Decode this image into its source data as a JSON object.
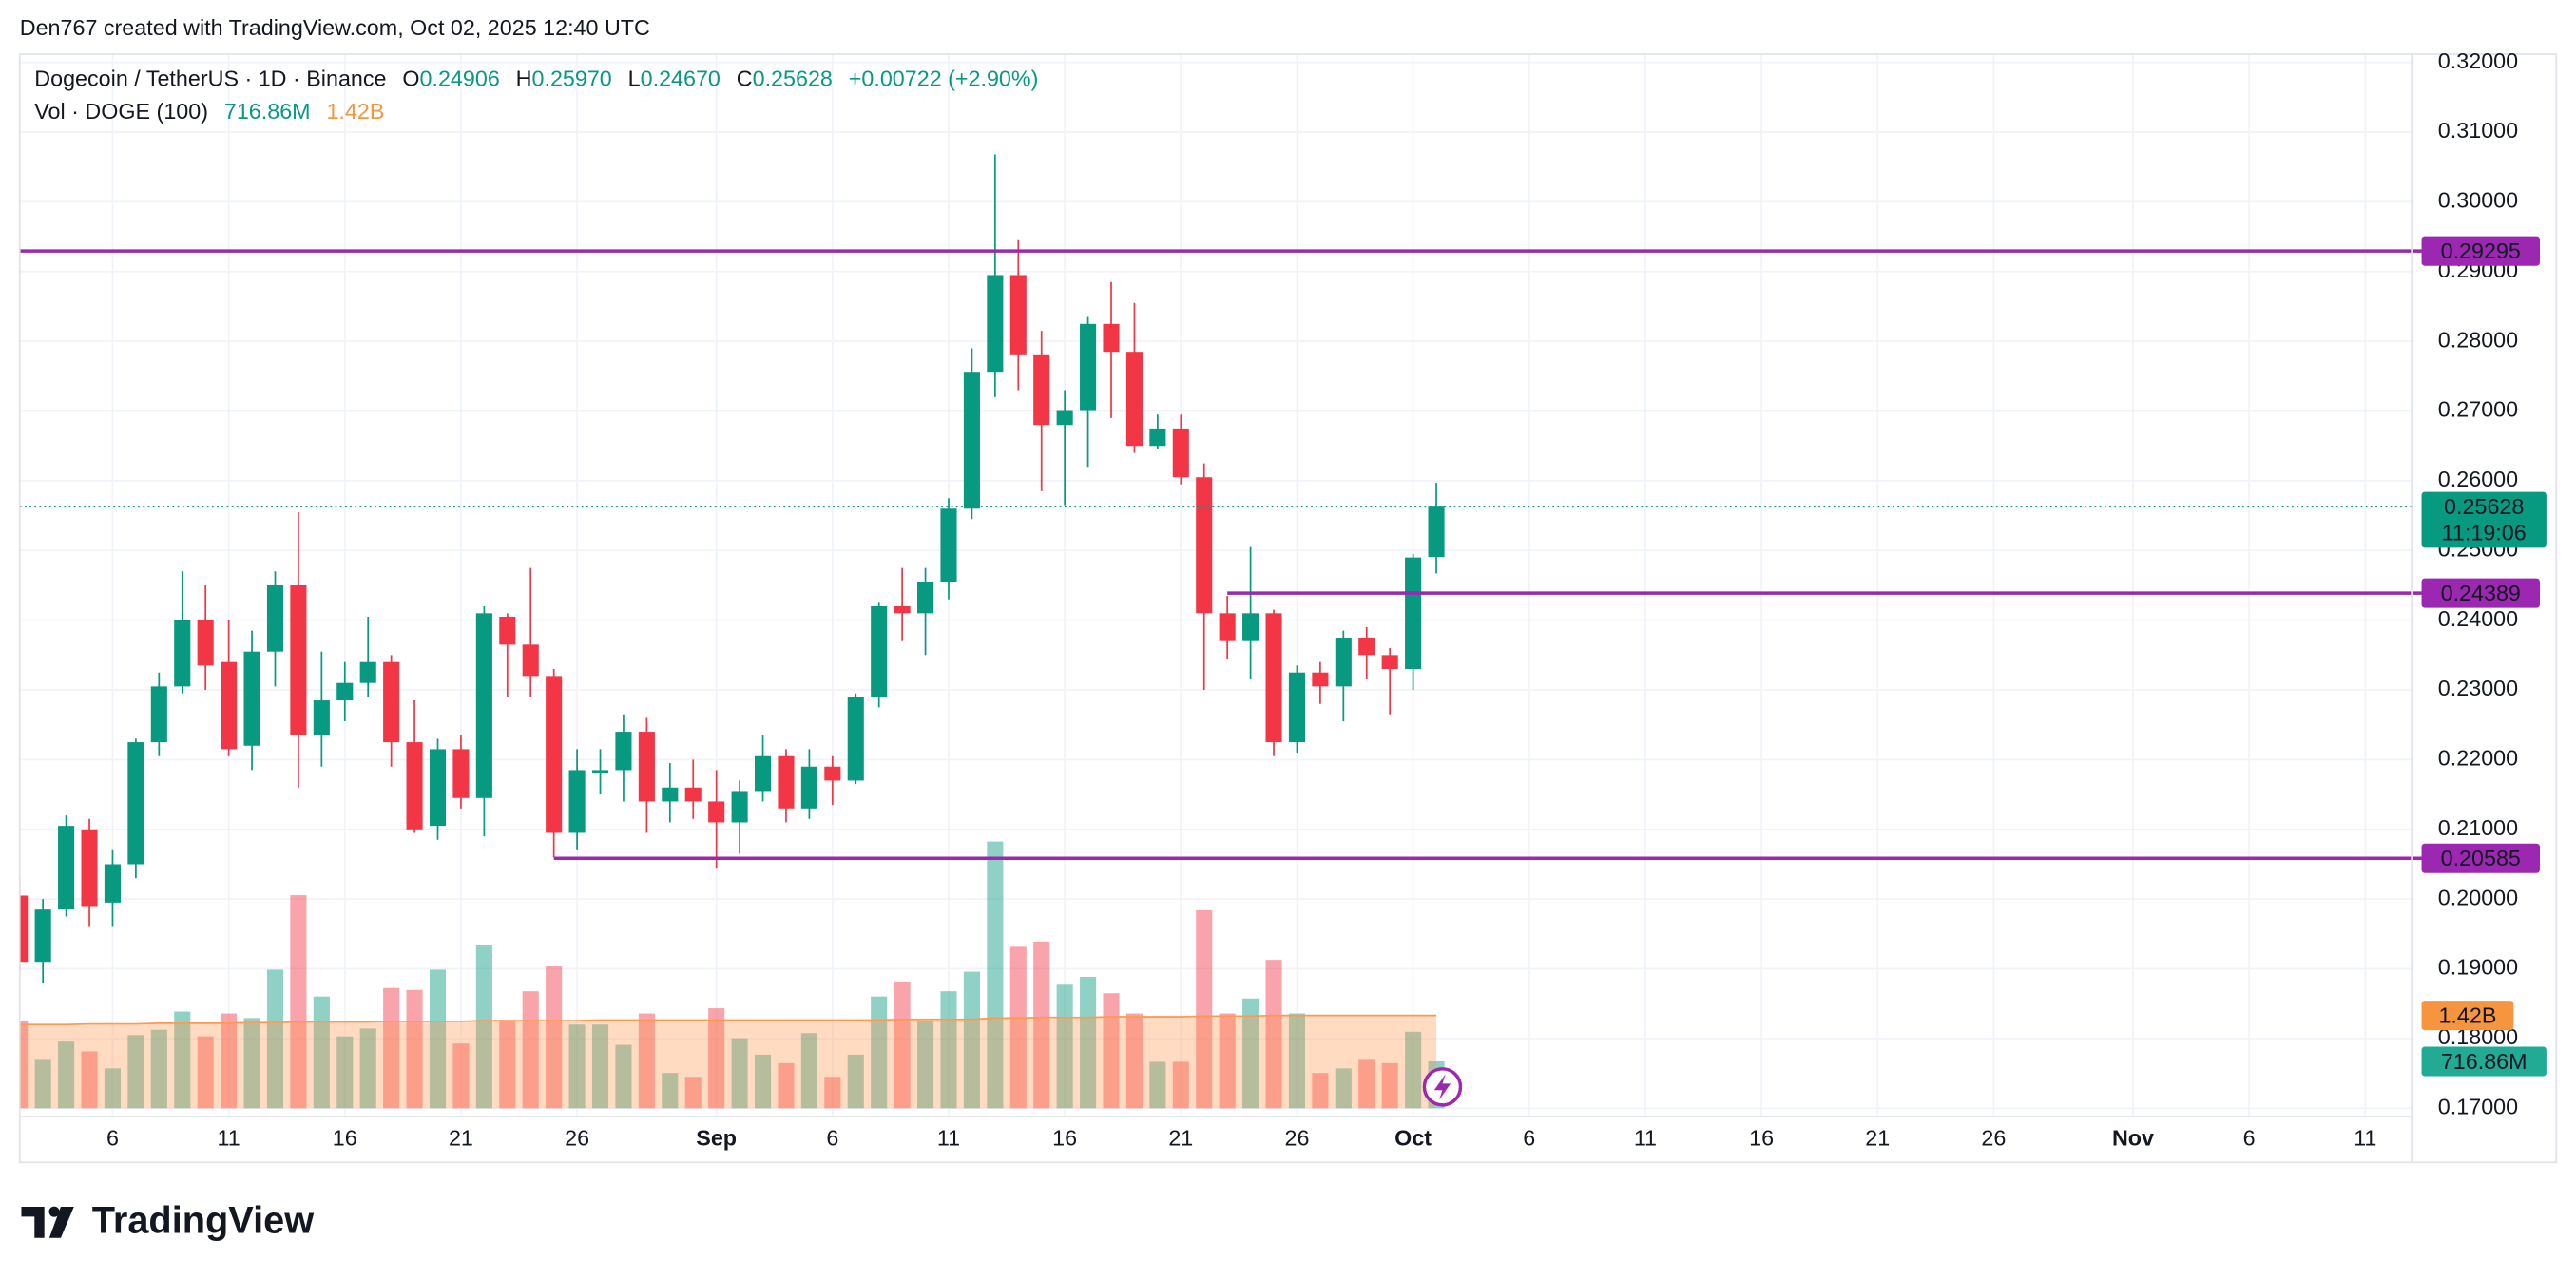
{
  "chart_data": {
    "type": "candlestick",
    "watermark": "Den767 created with TradingView.com, Oct 02, 2025 12:40 UTC",
    "symbol": "Dogecoin / TetherUS · 1D · Binance",
    "header": {
      "open_label": "O",
      "open": "0.24906",
      "high_label": "H",
      "high": "0.25970",
      "low_label": "L",
      "low": "0.24670",
      "close_label": "C",
      "close": "0.25628",
      "change": "+0.00722 (+2.90%)"
    },
    "volume_legend": {
      "name": "Vol · DOGE (100)",
      "value": "716.86M",
      "ma": "1.42B"
    },
    "x": [
      "2025-08-02",
      "2025-08-03",
      "2025-08-04",
      "2025-08-05",
      "2025-08-06",
      "2025-08-07",
      "2025-08-08",
      "2025-08-09",
      "2025-08-10",
      "2025-08-11",
      "2025-08-12",
      "2025-08-13",
      "2025-08-14",
      "2025-08-15",
      "2025-08-16",
      "2025-08-17",
      "2025-08-18",
      "2025-08-19",
      "2025-08-20",
      "2025-08-21",
      "2025-08-22",
      "2025-08-23",
      "2025-08-24",
      "2025-08-25",
      "2025-08-26",
      "2025-08-27",
      "2025-08-28",
      "2025-08-29",
      "2025-08-30",
      "2025-08-31",
      "2025-09-01",
      "2025-09-02",
      "2025-09-03",
      "2025-09-04",
      "2025-09-05",
      "2025-09-06",
      "2025-09-07",
      "2025-09-08",
      "2025-09-09",
      "2025-09-10",
      "2025-09-11",
      "2025-09-12",
      "2025-09-13",
      "2025-09-14",
      "2025-09-15",
      "2025-09-16",
      "2025-09-17",
      "2025-09-18",
      "2025-09-19",
      "2025-09-20",
      "2025-09-21",
      "2025-09-22",
      "2025-09-23",
      "2025-09-24",
      "2025-09-25",
      "2025-09-26",
      "2025-09-27",
      "2025-09-28",
      "2025-09-29",
      "2025-09-30",
      "2025-10-01",
      "2025-10-02"
    ],
    "open": [
      0.2005,
      0.191,
      0.1985,
      0.21,
      0.1995,
      0.205,
      0.2225,
      0.2305,
      0.24,
      0.234,
      0.222,
      0.2355,
      0.245,
      0.2235,
      0.2285,
      0.231,
      0.234,
      0.2225,
      0.2105,
      0.2215,
      0.2145,
      0.2405,
      0.2365,
      0.232,
      0.2095,
      0.218,
      0.2185,
      0.224,
      0.214,
      0.216,
      0.214,
      0.211,
      0.2155,
      0.2205,
      0.213,
      0.219,
      0.217,
      0.229,
      0.242,
      0.241,
      0.2455,
      0.256,
      0.2755,
      0.2895,
      0.278,
      0.268,
      0.27,
      0.2825,
      0.2785,
      0.265,
      0.2675,
      0.2605,
      0.241,
      0.237,
      0.241,
      0.2225,
      0.2325,
      0.2305,
      0.2375,
      0.235,
      0.233,
      0.24906
    ],
    "high": [
      0.203,
      0.2,
      0.212,
      0.2115,
      0.207,
      0.223,
      0.2325,
      0.247,
      0.245,
      0.24,
      0.2385,
      0.247,
      0.2555,
      0.2355,
      0.234,
      0.2405,
      0.235,
      0.2285,
      0.223,
      0.2235,
      0.242,
      0.241,
      0.2475,
      0.233,
      0.2215,
      0.2215,
      0.2265,
      0.226,
      0.2195,
      0.22,
      0.2185,
      0.217,
      0.2235,
      0.2215,
      0.2215,
      0.2205,
      0.2295,
      0.2425,
      0.2475,
      0.2475,
      0.2575,
      0.279,
      0.3068,
      0.2945,
      0.2815,
      0.273,
      0.2835,
      0.2885,
      0.2855,
      0.2695,
      0.2695,
      0.2625,
      0.2435,
      0.2505,
      0.2415,
      0.2335,
      0.234,
      0.2385,
      0.239,
      0.236,
      0.2495,
      0.2597
    ],
    "low": [
      0.1895,
      0.188,
      0.1975,
      0.196,
      0.196,
      0.203,
      0.2205,
      0.2295,
      0.23,
      0.2205,
      0.2185,
      0.2305,
      0.216,
      0.219,
      0.2255,
      0.229,
      0.219,
      0.2095,
      0.2085,
      0.213,
      0.209,
      0.229,
      0.229,
      0.206,
      0.207,
      0.215,
      0.214,
      0.2095,
      0.211,
      0.2115,
      0.2045,
      0.2065,
      0.214,
      0.211,
      0.2115,
      0.2135,
      0.2165,
      0.2275,
      0.237,
      0.235,
      0.243,
      0.2545,
      0.272,
      0.273,
      0.2585,
      0.2565,
      0.262,
      0.269,
      0.264,
      0.2645,
      0.2595,
      0.23,
      0.2345,
      0.2315,
      0.2205,
      0.221,
      0.228,
      0.2255,
      0.2315,
      0.2265,
      0.23,
      0.2467
    ],
    "close": [
      0.191,
      0.1985,
      0.2105,
      0.199,
      0.205,
      0.2225,
      0.2305,
      0.24,
      0.2335,
      0.2215,
      0.2355,
      0.245,
      0.2235,
      0.2285,
      0.231,
      0.234,
      0.2225,
      0.21,
      0.2215,
      0.2145,
      0.241,
      0.2365,
      0.232,
      0.2095,
      0.2185,
      0.2185,
      0.224,
      0.214,
      0.216,
      0.214,
      0.211,
      0.2155,
      0.2205,
      0.213,
      0.219,
      0.217,
      0.229,
      0.242,
      0.241,
      0.2455,
      0.256,
      0.2755,
      0.2895,
      0.278,
      0.268,
      0.27,
      0.2825,
      0.2785,
      0.265,
      0.2675,
      0.2605,
      0.241,
      0.237,
      0.241,
      0.2225,
      0.2325,
      0.2305,
      0.2375,
      0.235,
      0.233,
      0.249,
      0.25628
    ],
    "volume": [
      1330000000,
      740000000,
      1020000000,
      870000000,
      610000000,
      1120000000,
      1200000000,
      1480000000,
      1100000000,
      1450000000,
      1380000000,
      2120000000,
      3260000000,
      1710000000,
      1100000000,
      1220000000,
      1840000000,
      1810000000,
      2120000000,
      990000000,
      2500000000,
      1350000000,
      1790000000,
      2170000000,
      1280000000,
      1280000000,
      970000000,
      1450000000,
      540000000,
      480000000,
      1530000000,
      1070000000,
      820000000,
      690000000,
      1150000000,
      480000000,
      820000000,
      1710000000,
      1940000000,
      1330000000,
      1790000000,
      2090000000,
      4080000000,
      2470000000,
      2550000000,
      1890000000,
      2010000000,
      1760000000,
      1450000000,
      710000000,
      710000000,
      3030000000,
      1450000000,
      1680000000,
      2270000000,
      1450000000,
      540000000,
      610000000,
      740000000,
      690000000,
      1170000000,
      716860000
    ],
    "volume_ma": [
      1280000000,
      1280000000,
      1280000000,
      1290000000,
      1290000000,
      1290000000,
      1300000000,
      1300000000,
      1300000000,
      1300000000,
      1310000000,
      1310000000,
      1320000000,
      1320000000,
      1320000000,
      1320000000,
      1330000000,
      1330000000,
      1330000000,
      1330000000,
      1340000000,
      1340000000,
      1340000000,
      1340000000,
      1340000000,
      1350000000,
      1350000000,
      1350000000,
      1350000000,
      1350000000,
      1350000000,
      1350000000,
      1350000000,
      1350000000,
      1350000000,
      1350000000,
      1350000000,
      1350000000,
      1360000000,
      1360000000,
      1360000000,
      1360000000,
      1380000000,
      1380000000,
      1390000000,
      1390000000,
      1390000000,
      1400000000,
      1400000000,
      1400000000,
      1400000000,
      1410000000,
      1410000000,
      1410000000,
      1420000000,
      1420000000,
      1420000000,
      1420000000,
      1420000000,
      1420000000,
      1420000000,
      1420000000
    ],
    "up_color": "#089981",
    "down_color": "#f23645",
    "volume_ma_color": "#ff9850",
    "level_color": "#9c27b0",
    "xlim": [
      "2025-08-02",
      "2025-11-13"
    ],
    "xticks": [
      {
        "value": "2025-08-06",
        "label": "6"
      },
      {
        "value": "2025-08-11",
        "label": "11"
      },
      {
        "value": "2025-08-16",
        "label": "16"
      },
      {
        "value": "2025-08-21",
        "label": "21"
      },
      {
        "value": "2025-08-26",
        "label": "26"
      },
      {
        "value": "2025-09-01",
        "label": "Sep"
      },
      {
        "value": "2025-09-06",
        "label": "6"
      },
      {
        "value": "2025-09-11",
        "label": "11"
      },
      {
        "value": "2025-09-16",
        "label": "16"
      },
      {
        "value": "2025-09-21",
        "label": "21"
      },
      {
        "value": "2025-09-26",
        "label": "26"
      },
      {
        "value": "2025-10-01",
        "label": "Oct"
      },
      {
        "value": "2025-10-06",
        "label": "6"
      },
      {
        "value": "2025-10-11",
        "label": "11"
      },
      {
        "value": "2025-10-16",
        "label": "16"
      },
      {
        "value": "2025-10-21",
        "label": "21"
      },
      {
        "value": "2025-10-26",
        "label": "26"
      },
      {
        "value": "2025-11-01",
        "label": "Nov"
      },
      {
        "value": "2025-11-06",
        "label": "6"
      },
      {
        "value": "2025-11-11",
        "label": "11"
      }
    ],
    "ylim": [
      0.17,
      0.32
    ],
    "yticks": [
      {
        "value": 0.32,
        "label": "0.32000"
      },
      {
        "value": 0.31,
        "label": "0.31000"
      },
      {
        "value": 0.3,
        "label": "0.30000"
      },
      {
        "value": 0.29,
        "label": "0.29000"
      },
      {
        "value": 0.28,
        "label": "0.28000"
      },
      {
        "value": 0.27,
        "label": "0.27000"
      },
      {
        "value": 0.26,
        "label": "0.26000"
      },
      {
        "value": 0.25,
        "label": "0.25000"
      },
      {
        "value": 0.24,
        "label": "0.24000"
      },
      {
        "value": 0.23,
        "label": "0.23000"
      },
      {
        "value": 0.22,
        "label": "0.22000"
      },
      {
        "value": 0.21,
        "label": "0.21000"
      },
      {
        "value": 0.2,
        "label": "0.20000"
      },
      {
        "value": 0.19,
        "label": "0.19000"
      },
      {
        "value": 0.18,
        "label": "0.18000"
      },
      {
        "value": 0.17,
        "label": "0.17000"
      }
    ],
    "volume_lim": [
      0,
      16000000000
    ],
    "grid": true,
    "hlines": [
      {
        "value": 0.29295,
        "label": "0.29295"
      },
      {
        "value": 0.24389,
        "label": "0.24389",
        "from": "2025-09-23"
      },
      {
        "value": 0.20585,
        "label": "0.20585",
        "from": "2025-08-25"
      }
    ],
    "last_price": {
      "value": 0.25628,
      "label": "0.25628",
      "countdown": "11:19:06"
    },
    "logo": "TradingView"
  }
}
